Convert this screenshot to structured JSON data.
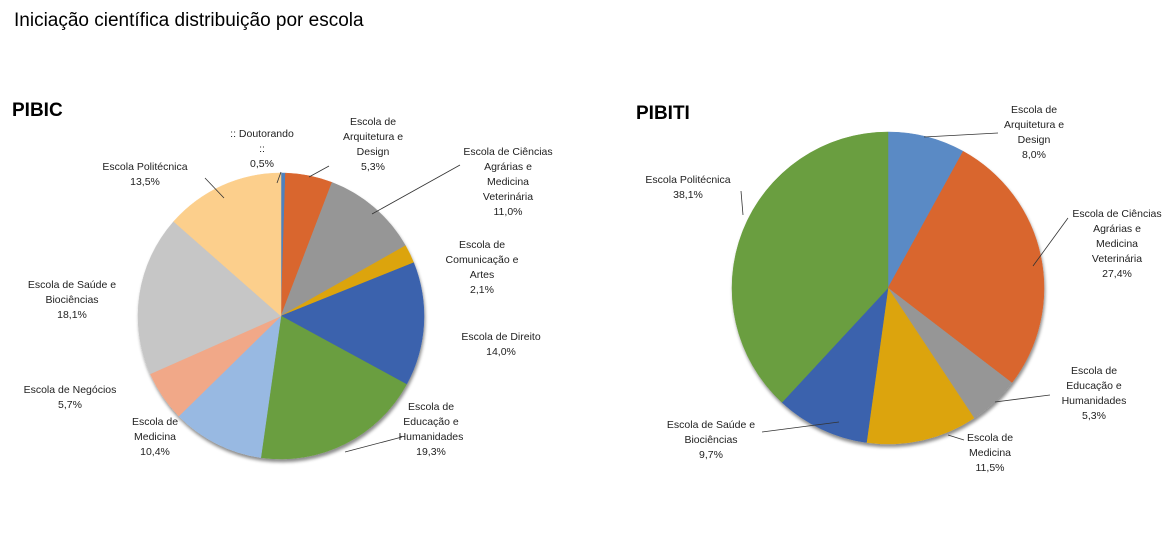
{
  "title": "Iniciação científica distribuição por escola",
  "chart_data": [
    {
      "type": "pie",
      "title": "PIBIC",
      "slices": [
        {
          "label": [
            ":: Doutorando",
            "::"
          ],
          "value": 0.5,
          "value_label": "0,5%",
          "color": "#4f81bd"
        },
        {
          "label": [
            "Escola de",
            "Arquitetura e",
            "Design"
          ],
          "value": 5.3,
          "value_label": "5,3%",
          "color": "#d9662f"
        },
        {
          "label": [
            "Escola de Ciências",
            "Agrárias e",
            "Medicina",
            "Veterinária"
          ],
          "value": 11.0,
          "value_label": "11,0%",
          "color": "#969696"
        },
        {
          "label": [
            "Escola de",
            "Comunicação e",
            "Artes"
          ],
          "value": 2.1,
          "value_label": "2,1%",
          "color": "#dca410"
        },
        {
          "label": [
            "Escola de Direito"
          ],
          "value": 14.0,
          "value_label": "14,0%",
          "color": "#3a62ad"
        },
        {
          "label": [
            "Escola de",
            "Educação e",
            "Humanidades"
          ],
          "value": 19.3,
          "value_label": "19,3%",
          "color": "#6a9e3f"
        },
        {
          "label": [
            "Escola de",
            "Medicina"
          ],
          "value": 10.4,
          "value_label": "10,4%",
          "color": "#98b9e2"
        },
        {
          "label": [
            "Escola de Negócios"
          ],
          "value": 5.7,
          "value_label": "5,7%",
          "color": "#f1a888"
        },
        {
          "label": [
            "Escola de Saúde e",
            "Biociências"
          ],
          "value": 18.1,
          "value_label": "18,1%",
          "color": "#c6c6c6"
        },
        {
          "label": [
            "Escola Politécnica"
          ],
          "value": 13.5,
          "value_label": "13,5%",
          "color": "#fccf8c"
        }
      ]
    },
    {
      "type": "pie",
      "title": "PIBITI",
      "slices": [
        {
          "label": [
            "Escola de",
            "Arquitetura e",
            "Design"
          ],
          "value": 8.0,
          "value_label": "8,0%",
          "color": "#5a8ac5"
        },
        {
          "label": [
            "Escola de Ciências",
            "Agrárias e",
            "Medicina",
            "Veterinária"
          ],
          "value": 27.4,
          "value_label": "27,4%",
          "color": "#d9662f"
        },
        {
          "label": [
            "Escola de",
            "Educação e",
            "Humanidades"
          ],
          "value": 5.3,
          "value_label": "5,3%",
          "color": "#969696"
        },
        {
          "label": [
            "Escola de",
            "Medicina"
          ],
          "value": 11.5,
          "value_label": "11,5%",
          "color": "#dca410"
        },
        {
          "label": [
            "Escola de Saúde e",
            "Biociências"
          ],
          "value": 9.7,
          "value_label": "9,7%",
          "color": "#3a62ad"
        },
        {
          "label": [
            "Escola Politécnica"
          ],
          "value": 38.1,
          "value_label": "38,1%",
          "color": "#6a9e3f"
        }
      ]
    }
  ]
}
